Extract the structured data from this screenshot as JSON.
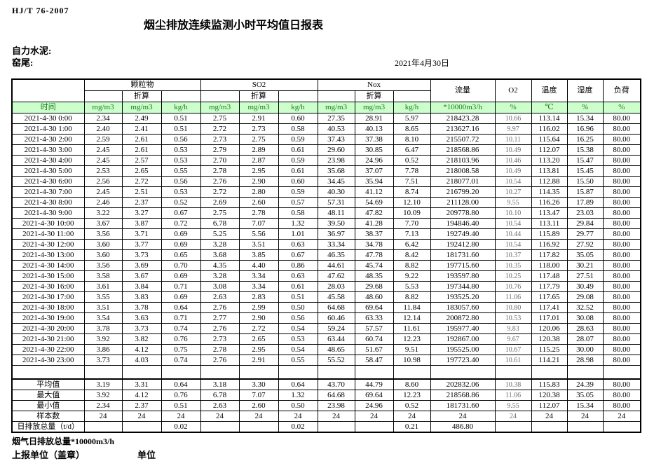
{
  "header": {
    "standard": "HJ/T  76-2007",
    "title": "烟尘排放连续监测小时平均值日报表",
    "company": "自力水泥:",
    "site": "窑尾:",
    "date": "2021年4月30日"
  },
  "table": {
    "time_label": "时间",
    "converted_label": "折算",
    "groups": {
      "pm": "颗粒物",
      "so2": "SO2",
      "nox": "Nox",
      "flow": "流量",
      "o2": "O2",
      "temp": "温度",
      "humidity": "湿度",
      "load": "负荷"
    },
    "units": [
      "mg/m3",
      "mg/m3",
      "kg/h",
      "mg/m3",
      "mg/m3",
      "kg/h",
      "mg/m3",
      "mg/m3",
      "kg/h",
      "*10000m3/h",
      "%",
      "℃",
      "%",
      "%"
    ],
    "rows": [
      {
        "time": "2021-4-30 0:00",
        "values": [
          "2.34",
          "2.49",
          "0.51",
          "2.75",
          "2.91",
          "0.60",
          "27.35",
          "28.91",
          "5.97",
          "218423.28",
          "10.66",
          "113.14",
          "15.34",
          "80.00"
        ]
      },
      {
        "time": "2021-4-30 1:00",
        "values": [
          "2.40",
          "2.41",
          "0.51",
          "2.72",
          "2.73",
          "0.58",
          "40.53",
          "40.13",
          "8.65",
          "213627.16",
          "9.97",
          "116.02",
          "16.96",
          "80.00"
        ]
      },
      {
        "time": "2021-4-30 2:00",
        "values": [
          "2.59",
          "2.61",
          "0.56",
          "2.73",
          "2.75",
          "0.59",
          "37.43",
          "37.38",
          "8.10",
          "215507.72",
          "10.11",
          "115.64",
          "16.25",
          "80.00"
        ]
      },
      {
        "time": "2021-4-30 3:00",
        "values": [
          "2.45",
          "2.61",
          "0.53",
          "2.79",
          "2.89",
          "0.61",
          "29.60",
          "30.85",
          "6.47",
          "218568.86",
          "10.49",
          "112.07",
          "15.38",
          "80.00"
        ]
      },
      {
        "time": "2021-4-30 4:00",
        "values": [
          "2.45",
          "2.57",
          "0.53",
          "2.70",
          "2.87",
          "0.59",
          "23.98",
          "24.96",
          "0.52",
          "218103.96",
          "10.46",
          "113.20",
          "15.47",
          "80.00"
        ]
      },
      {
        "time": "2021-4-30 5:00",
        "values": [
          "2.53",
          "2.65",
          "0.55",
          "2.78",
          "2.95",
          "0.61",
          "35.68",
          "37.07",
          "7.78",
          "218008.58",
          "10.49",
          "113.81",
          "15.45",
          "80.00"
        ]
      },
      {
        "time": "2021-4-30 6:00",
        "values": [
          "2.56",
          "2.72",
          "0.56",
          "2.76",
          "2.90",
          "0.60",
          "34.45",
          "35.94",
          "7.51",
          "218077.01",
          "10.54",
          "112.88",
          "15.50",
          "80.00"
        ]
      },
      {
        "time": "2021-4-30 7:00",
        "values": [
          "2.45",
          "2.51",
          "0.53",
          "2.72",
          "2.80",
          "0.59",
          "40.30",
          "41.12",
          "8.74",
          "216799.20",
          "10.27",
          "114.35",
          "15.87",
          "80.00"
        ]
      },
      {
        "time": "2021-4-30 8:00",
        "values": [
          "2.46",
          "2.37",
          "0.52",
          "2.69",
          "2.60",
          "0.57",
          "57.31",
          "54.69",
          "12.10",
          "211128.00",
          "9.55",
          "116.26",
          "17.89",
          "80.00"
        ]
      },
      {
        "time": "2021-4-30 9:00",
        "values": [
          "3.22",
          "3.27",
          "0.67",
          "2.75",
          "2.78",
          "0.58",
          "48.11",
          "47.82",
          "10.09",
          "209778.80",
          "10.10",
          "113.47",
          "23.03",
          "80.00"
        ]
      },
      {
        "time": "2021-4-30 10:00",
        "values": [
          "3.67",
          "3.87",
          "0.72",
          "6.78",
          "7.07",
          "1.32",
          "39.50",
          "41.28",
          "7.70",
          "194846.40",
          "10.54",
          "113.11",
          "29.84",
          "80.00"
        ]
      },
      {
        "time": "2021-4-30 11:00",
        "values": [
          "3.56",
          "3.71",
          "0.69",
          "5.25",
          "5.56",
          "1.01",
          "36.97",
          "38.37",
          "7.13",
          "192749.40",
          "10.44",
          "115.89",
          "29.77",
          "80.00"
        ]
      },
      {
        "time": "2021-4-30 12:00",
        "values": [
          "3.60",
          "3.77",
          "0.69",
          "3.28",
          "3.51",
          "0.63",
          "33.34",
          "34.78",
          "6.42",
          "192412.80",
          "10.54",
          "116.92",
          "27.92",
          "80.00"
        ]
      },
      {
        "time": "2021-4-30 13:00",
        "values": [
          "3.60",
          "3.73",
          "0.65",
          "3.68",
          "3.85",
          "0.67",
          "46.35",
          "47.78",
          "8.42",
          "181731.60",
          "10.37",
          "117.82",
          "35.05",
          "80.00"
        ]
      },
      {
        "time": "2021-4-30 14:00",
        "values": [
          "3.56",
          "3.69",
          "0.70",
          "4.35",
          "4.40",
          "0.86",
          "44.61",
          "45.74",
          "8.82",
          "197715.60",
          "10.35",
          "118.00",
          "30.21",
          "80.00"
        ]
      },
      {
        "time": "2021-4-30 15:00",
        "values": [
          "3.58",
          "3.67",
          "0.69",
          "3.28",
          "3.34",
          "0.63",
          "47.62",
          "48.35",
          "9.22",
          "193597.80",
          "10.25",
          "117.48",
          "27.51",
          "80.00"
        ]
      },
      {
        "time": "2021-4-30 16:00",
        "values": [
          "3.61",
          "3.84",
          "0.71",
          "3.08",
          "3.34",
          "0.61",
          "28.03",
          "29.68",
          "5.53",
          "197344.80",
          "10.76",
          "117.79",
          "30.49",
          "80.00"
        ]
      },
      {
        "time": "2021-4-30 17:00",
        "values": [
          "3.55",
          "3.83",
          "0.69",
          "2.63",
          "2.83",
          "0.51",
          "45.58",
          "48.60",
          "8.82",
          "193525.20",
          "11.06",
          "117.65",
          "29.08",
          "80.00"
        ]
      },
      {
        "time": "2021-4-30 18:00",
        "values": [
          "3.51",
          "3.78",
          "0.64",
          "2.76",
          "2.99",
          "0.50",
          "64.68",
          "69.64",
          "11.84",
          "183057.60",
          "10.80",
          "117.41",
          "32.52",
          "80.00"
        ]
      },
      {
        "time": "2021-4-30 19:00",
        "values": [
          "3.54",
          "3.63",
          "0.71",
          "2.77",
          "2.90",
          "0.56",
          "60.46",
          "63.33",
          "12.14",
          "200872.80",
          "10.53",
          "117.01",
          "30.08",
          "80.00"
        ]
      },
      {
        "time": "2021-4-30 20:00",
        "values": [
          "3.78",
          "3.73",
          "0.74",
          "2.76",
          "2.72",
          "0.54",
          "59.24",
          "57.57",
          "11.61",
          "195977.40",
          "9.83",
          "120.06",
          "28.63",
          "80.00"
        ]
      },
      {
        "time": "2021-4-30 21:00",
        "values": [
          "3.92",
          "3.82",
          "0.76",
          "2.73",
          "2.65",
          "0.53",
          "63.44",
          "60.74",
          "12.23",
          "192867.00",
          "9.67",
          "120.38",
          "28.07",
          "80.00"
        ]
      },
      {
        "time": "2021-4-30 22:00",
        "values": [
          "3.86",
          "4.12",
          "0.75",
          "2.78",
          "2.95",
          "0.54",
          "48.65",
          "51.67",
          "9.51",
          "195525.00",
          "10.67",
          "115.25",
          "30.00",
          "80.00"
        ]
      },
      {
        "time": "2021-4-30 23:00",
        "values": [
          "3.73",
          "4.03",
          "0.74",
          "2.76",
          "2.91",
          "0.55",
          "55.52",
          "58.47",
          "10.98",
          "197723.40",
          "10.61",
          "114.21",
          "28.98",
          "80.00"
        ]
      }
    ],
    "summary": [
      {
        "label": "平均值",
        "values": [
          "3.19",
          "3.31",
          "0.64",
          "3.18",
          "3.30",
          "0.64",
          "43.70",
          "44.79",
          "8.60",
          "202832.06",
          "10.38",
          "115.83",
          "24.39",
          "80.00"
        ]
      },
      {
        "label": "最大值",
        "values": [
          "3.92",
          "4.12",
          "0.76",
          "6.78",
          "7.07",
          "1.32",
          "64.68",
          "69.64",
          "12.23",
          "218568.86",
          "11.06",
          "120.38",
          "35.05",
          "80.00"
        ]
      },
      {
        "label": "最小值",
        "values": [
          "2.34",
          "2.37",
          "0.51",
          "2.63",
          "2.60",
          "0.50",
          "23.98",
          "24.96",
          "0.52",
          "181731.60",
          "9.55",
          "112.07",
          "15.34",
          "80.00"
        ]
      },
      {
        "label": "样本数",
        "values": [
          "24",
          "24",
          "24",
          "24",
          "24",
          "24",
          "24",
          "24",
          "24",
          "24",
          "24",
          "24",
          "24",
          "24"
        ]
      }
    ],
    "total_row": {
      "label": "日排放总量（t/d）",
      "values": [
        "",
        "",
        "0.02",
        "",
        "",
        "0.02",
        "",
        "",
        "0.21",
        "486.80",
        "",
        "",
        "",
        ""
      ]
    }
  },
  "footer": {
    "gas_total": "烟气日排放总量*10000m3/h",
    "report_unit": "上报单位（盖章）",
    "unit": "单位"
  },
  "colors": {
    "header_row_bg": "#ccffcc",
    "header_row_text": "#1f7a1f",
    "border": "#000000",
    "o2_column_text": "#6e6e6e"
  }
}
